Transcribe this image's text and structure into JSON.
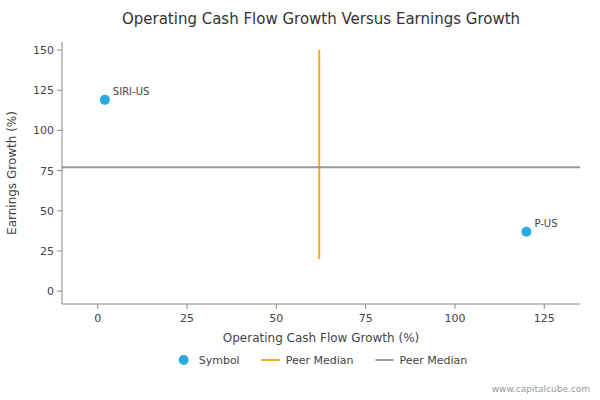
{
  "chart_data": {
    "type": "scatter",
    "title": "Operating Cash Flow Growth Versus Earnings Growth",
    "x_label": "Operating Cash Flow Growth (%)",
    "y_label": "Earnings Growth (%)",
    "watermark": "www.capitalcube.com",
    "series": [
      {
        "name": "Symbol",
        "color": "#29ABE2",
        "marker": "circle",
        "x": [
          2,
          120
        ],
        "values": [
          119,
          37
        ],
        "labels": [
          "SIRI-US",
          "P-US"
        ]
      }
    ],
    "reference_lines": [
      {
        "name": "Peer Median",
        "axis": "x",
        "value": 62,
        "ymin": 20,
        "ymax": 150,
        "color": "#F5A623"
      },
      {
        "name": "Peer Median",
        "axis": "y",
        "value": 77,
        "color": "#999999"
      }
    ],
    "xlim": [
      -10,
      135
    ],
    "ylim": [
      -8,
      155
    ],
    "xticks": [
      0,
      25,
      50,
      75,
      100,
      125
    ],
    "yticks": [
      0,
      25,
      50,
      75,
      100,
      125,
      150
    ],
    "grid": false,
    "legend": "bottom"
  }
}
